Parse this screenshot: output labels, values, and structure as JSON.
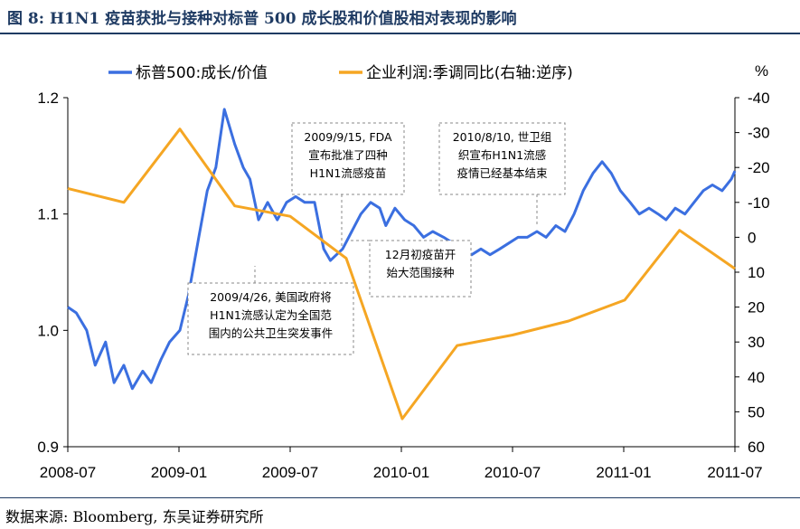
{
  "header": {
    "title": "图 8:  H1N1 疫苗获批与接种对标普 500 成长股和价值股相对表现的影响"
  },
  "footer": {
    "source": "数据来源:  Bloomberg,  东吴证券研究所"
  },
  "colors": {
    "series_left": "#3b6fe0",
    "series_right": "#f5a623",
    "title": "#1f3b63",
    "axis": "#000000"
  },
  "chart_data": {
    "type": "line",
    "title": "H1N1 疫苗获批与接种对标普 500 成长股和价值股相对表现的影响",
    "x_ticks": [
      "2008-07",
      "2009-01",
      "2009-07",
      "2010-01",
      "2010-07",
      "2011-01",
      "2011-07"
    ],
    "ylim_left": [
      0.9,
      1.2
    ],
    "y_ticks_left": [
      "0.9",
      "1.0",
      "1.1",
      "1.2"
    ],
    "ylim_right": [
      60,
      -40
    ],
    "right_unit": "%",
    "right_inverted": true,
    "y_ticks_right": [
      "-40",
      "-30",
      "-20",
      "-10",
      "0",
      "10",
      "20",
      "30",
      "40",
      "50",
      "60"
    ],
    "legend": [
      "标普500:成长/价值",
      "企业利润:季调同比(右轴:逆序)"
    ],
    "series": [
      {
        "name": "标普500:成长/价值",
        "axis": "left",
        "color": "#3b6fe0",
        "points": [
          [
            "2008-07-01",
            1.02
          ],
          [
            "2008-07-15",
            1.015
          ],
          [
            "2008-08-01",
            1.0
          ],
          [
            "2008-08-15",
            0.97
          ],
          [
            "2008-09-01",
            0.99
          ],
          [
            "2008-09-15",
            0.955
          ],
          [
            "2008-10-01",
            0.97
          ],
          [
            "2008-10-15",
            0.95
          ],
          [
            "2008-11-01",
            0.965
          ],
          [
            "2008-11-15",
            0.955
          ],
          [
            "2008-12-01",
            0.975
          ],
          [
            "2008-12-15",
            0.99
          ],
          [
            "2009-01-01",
            1.0
          ],
          [
            "2009-01-15",
            1.03
          ],
          [
            "2009-02-01",
            1.08
          ],
          [
            "2009-02-15",
            1.12
          ],
          [
            "2009-03-01",
            1.14
          ],
          [
            "2009-03-15",
            1.19
          ],
          [
            "2009-04-01",
            1.16
          ],
          [
            "2009-04-15",
            1.14
          ],
          [
            "2009-04-26",
            1.13
          ],
          [
            "2009-05-10",
            1.095
          ],
          [
            "2009-05-25",
            1.11
          ],
          [
            "2009-06-10",
            1.095
          ],
          [
            "2009-06-25",
            1.11
          ],
          [
            "2009-07-10",
            1.115
          ],
          [
            "2009-07-25",
            1.11
          ],
          [
            "2009-08-10",
            1.11
          ],
          [
            "2009-08-25",
            1.07
          ],
          [
            "2009-09-05",
            1.06
          ],
          [
            "2009-09-15",
            1.065
          ],
          [
            "2009-09-25",
            1.07
          ],
          [
            "2009-10-10",
            1.085
          ],
          [
            "2009-10-25",
            1.1
          ],
          [
            "2009-11-10",
            1.11
          ],
          [
            "2009-11-25",
            1.105
          ],
          [
            "2009-12-05",
            1.09
          ],
          [
            "2009-12-20",
            1.105
          ],
          [
            "2010-01-05",
            1.095
          ],
          [
            "2010-01-20",
            1.09
          ],
          [
            "2010-02-05",
            1.08
          ],
          [
            "2010-02-20",
            1.085
          ],
          [
            "2010-03-10",
            1.08
          ],
          [
            "2010-03-25",
            1.075
          ],
          [
            "2010-04-10",
            1.07
          ],
          [
            "2010-04-25",
            1.065
          ],
          [
            "2010-05-10",
            1.07
          ],
          [
            "2010-05-25",
            1.065
          ],
          [
            "2010-06-10",
            1.07
          ],
          [
            "2010-06-25",
            1.075
          ],
          [
            "2010-07-10",
            1.08
          ],
          [
            "2010-07-25",
            1.08
          ],
          [
            "2010-08-10",
            1.085
          ],
          [
            "2010-08-25",
            1.08
          ],
          [
            "2010-09-10",
            1.09
          ],
          [
            "2010-09-25",
            1.085
          ],
          [
            "2010-10-10",
            1.1
          ],
          [
            "2010-10-25",
            1.12
          ],
          [
            "2010-11-10",
            1.135
          ],
          [
            "2010-11-25",
            1.145
          ],
          [
            "2010-12-10",
            1.135
          ],
          [
            "2010-12-25",
            1.12
          ],
          [
            "2011-01-10",
            1.11
          ],
          [
            "2011-01-25",
            1.1
          ],
          [
            "2011-02-10",
            1.105
          ],
          [
            "2011-02-25",
            1.1
          ],
          [
            "2011-03-10",
            1.095
          ],
          [
            "2011-03-25",
            1.105
          ],
          [
            "2011-04-10",
            1.1
          ],
          [
            "2011-04-25",
            1.11
          ],
          [
            "2011-05-10",
            1.12
          ],
          [
            "2011-05-25",
            1.125
          ],
          [
            "2011-06-10",
            1.12
          ],
          [
            "2011-06-25",
            1.13
          ],
          [
            "2011-07-01",
            1.137
          ]
        ]
      },
      {
        "name": "企业利润:季调同比(右轴:逆序)",
        "axis": "right",
        "color": "#f5a623",
        "points": [
          [
            "2008-07-01",
            -14
          ],
          [
            "2008-10-01",
            -10
          ],
          [
            "2009-01-01",
            -31
          ],
          [
            "2009-04-01",
            -9
          ],
          [
            "2009-07-01",
            -6
          ],
          [
            "2009-10-01",
            6
          ],
          [
            "2010-01-01",
            52
          ],
          [
            "2010-04-01",
            31
          ],
          [
            "2010-07-01",
            28
          ],
          [
            "2010-10-01",
            24
          ],
          [
            "2011-01-01",
            18
          ],
          [
            "2011-04-01",
            -2
          ],
          [
            "2011-07-01",
            9
          ]
        ]
      }
    ],
    "annotations": [
      {
        "id": "a1",
        "lines": [
          "2009/4/26, 美国政府将",
          "H1N1流感认定为全国范",
          "围内的公共卫生突发事件"
        ],
        "date": "2009-04-26"
      },
      {
        "id": "a2",
        "lines": [
          "2009/9/15, FDA",
          "宣布批准了四种",
          "H1N1流感疫苗"
        ],
        "date": "2009-09-15"
      },
      {
        "id": "a3",
        "lines": [
          "12月初疫苗开",
          "始大范围接种"
        ],
        "date": "2009-12-01"
      },
      {
        "id": "a4",
        "lines": [
          "2010/8/10, 世卫组",
          "织宣布H1N1流感",
          "疫情已经基本结束"
        ],
        "date": "2010-08-10"
      }
    ]
  }
}
